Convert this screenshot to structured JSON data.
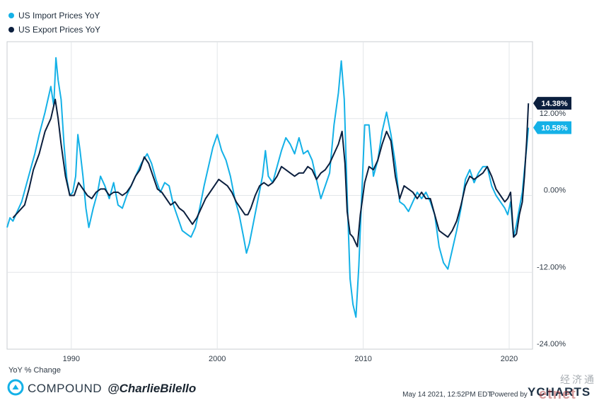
{
  "chart_data": {
    "type": "line",
    "title": "",
    "xlabel": "",
    "ylabel": "YoY % Change",
    "xlim": [
      1985.6,
      2021.6
    ],
    "ylim": [
      -24,
      24
    ],
    "x_ticks": [
      "1990",
      "2000",
      "2010",
      "2020"
    ],
    "y_ticks": [
      "12.00%",
      "0.00%",
      "-12.00%",
      "-24.00%"
    ],
    "legend_position": "top-left",
    "grid": true,
    "series": [
      {
        "name": "US Import Prices YoY",
        "color": "#14b1e7",
        "last_value_label": "10.58%",
        "points": [
          [
            1985.6,
            -5.0
          ],
          [
            1985.8,
            -3.5
          ],
          [
            1986.0,
            -4.0
          ],
          [
            1986.3,
            -2.5
          ],
          [
            1986.6,
            -1.0
          ],
          [
            1986.9,
            1.5
          ],
          [
            1987.2,
            4.0
          ],
          [
            1987.5,
            6.5
          ],
          [
            1987.8,
            9.5
          ],
          [
            1988.2,
            13.0
          ],
          [
            1988.6,
            17.0
          ],
          [
            1988.8,
            14.0
          ],
          [
            1988.95,
            21.5
          ],
          [
            1989.1,
            18.0
          ],
          [
            1989.3,
            15.0
          ],
          [
            1989.5,
            8.0
          ],
          [
            1989.7,
            2.5
          ],
          [
            1989.9,
            0.0
          ],
          [
            1990.1,
            0.5
          ],
          [
            1990.3,
            3.0
          ],
          [
            1990.45,
            9.5
          ],
          [
            1990.6,
            7.0
          ],
          [
            1990.8,
            3.0
          ],
          [
            1991.0,
            -2.0
          ],
          [
            1991.2,
            -5.0
          ],
          [
            1991.5,
            -2.0
          ],
          [
            1991.8,
            0.5
          ],
          [
            1992.0,
            3.0
          ],
          [
            1992.3,
            1.5
          ],
          [
            1992.6,
            -0.5
          ],
          [
            1992.9,
            2.0
          ],
          [
            1993.2,
            -1.5
          ],
          [
            1993.5,
            -2.0
          ],
          [
            1993.8,
            0.0
          ],
          [
            1994.1,
            1.5
          ],
          [
            1994.5,
            3.5
          ],
          [
            1994.8,
            5.0
          ],
          [
            1995.2,
            6.5
          ],
          [
            1995.5,
            5.0
          ],
          [
            1995.8,
            2.5
          ],
          [
            1996.1,
            0.5
          ],
          [
            1996.4,
            2.0
          ],
          [
            1996.7,
            1.5
          ],
          [
            1997.0,
            -1.5
          ],
          [
            1997.3,
            -3.5
          ],
          [
            1997.6,
            -5.5
          ],
          [
            1997.9,
            -6.0
          ],
          [
            1998.2,
            -6.5
          ],
          [
            1998.5,
            -5.0
          ],
          [
            1998.8,
            -2.0
          ],
          [
            1999.1,
            1.5
          ],
          [
            1999.4,
            4.5
          ],
          [
            1999.7,
            7.5
          ],
          [
            2000.0,
            9.5
          ],
          [
            2000.3,
            7.0
          ],
          [
            2000.6,
            5.5
          ],
          [
            2000.9,
            3.0
          ],
          [
            2001.2,
            -0.5
          ],
          [
            2001.5,
            -3.0
          ],
          [
            2001.8,
            -6.5
          ],
          [
            2002.0,
            -9.0
          ],
          [
            2002.2,
            -7.5
          ],
          [
            2002.5,
            -4.0
          ],
          [
            2002.8,
            -0.5
          ],
          [
            2003.1,
            3.0
          ],
          [
            2003.3,
            7.0
          ],
          [
            2003.5,
            3.0
          ],
          [
            2003.8,
            2.0
          ],
          [
            2004.1,
            4.5
          ],
          [
            2004.4,
            7.0
          ],
          [
            2004.7,
            9.0
          ],
          [
            2005.0,
            8.0
          ],
          [
            2005.3,
            6.5
          ],
          [
            2005.6,
            9.0
          ],
          [
            2005.9,
            6.5
          ],
          [
            2006.2,
            7.0
          ],
          [
            2006.5,
            5.5
          ],
          [
            2006.8,
            2.5
          ],
          [
            2007.1,
            -0.5
          ],
          [
            2007.4,
            1.5
          ],
          [
            2007.7,
            3.5
          ],
          [
            2008.0,
            11.0
          ],
          [
            2008.3,
            16.0
          ],
          [
            2008.5,
            21.0
          ],
          [
            2008.7,
            15.0
          ],
          [
            2008.9,
            0.0
          ],
          [
            2009.1,
            -13.0
          ],
          [
            2009.3,
            -17.0
          ],
          [
            2009.5,
            -19.0
          ],
          [
            2009.7,
            -11.0
          ],
          [
            2009.9,
            0.0
          ],
          [
            2010.1,
            11.0
          ],
          [
            2010.4,
            11.0
          ],
          [
            2010.7,
            3.0
          ],
          [
            2011.0,
            5.5
          ],
          [
            2011.3,
            10.0
          ],
          [
            2011.6,
            13.0
          ],
          [
            2011.9,
            9.5
          ],
          [
            2012.2,
            5.0
          ],
          [
            2012.5,
            -1.0
          ],
          [
            2012.8,
            -1.5
          ],
          [
            2013.1,
            -2.5
          ],
          [
            2013.4,
            -1.0
          ],
          [
            2013.7,
            0.5
          ],
          [
            2014.0,
            -0.5
          ],
          [
            2014.3,
            0.5
          ],
          [
            2014.6,
            -1.0
          ],
          [
            2014.9,
            -3.0
          ],
          [
            2015.2,
            -8.0
          ],
          [
            2015.5,
            -10.5
          ],
          [
            2015.8,
            -11.5
          ],
          [
            2016.1,
            -8.5
          ],
          [
            2016.4,
            -5.5
          ],
          [
            2016.7,
            -2.0
          ],
          [
            2017.0,
            2.5
          ],
          [
            2017.3,
            4.0
          ],
          [
            2017.6,
            2.0
          ],
          [
            2017.9,
            3.5
          ],
          [
            2018.2,
            4.5
          ],
          [
            2018.5,
            4.5
          ],
          [
            2018.8,
            1.5
          ],
          [
            2019.1,
            0.0
          ],
          [
            2019.4,
            -1.0
          ],
          [
            2019.7,
            -2.0
          ],
          [
            2019.9,
            -3.0
          ],
          [
            2020.1,
            -1.0
          ],
          [
            2020.3,
            -6.5
          ],
          [
            2020.5,
            -4.5
          ],
          [
            2020.7,
            -2.0
          ],
          [
            2020.9,
            0.5
          ],
          [
            2021.05,
            4.0
          ],
          [
            2021.2,
            7.5
          ],
          [
            2021.32,
            10.58
          ]
        ]
      },
      {
        "name": "US Export Prices YoY",
        "color": "#0b1f3e",
        "last_value_label": "14.38%",
        "points": [
          [
            1986.0,
            -3.5
          ],
          [
            1986.4,
            -2.5
          ],
          [
            1986.8,
            -1.5
          ],
          [
            1987.1,
            1.0
          ],
          [
            1987.4,
            4.0
          ],
          [
            1987.8,
            6.5
          ],
          [
            1988.2,
            10.0
          ],
          [
            1988.6,
            12.0
          ],
          [
            1988.9,
            15.0
          ],
          [
            1989.1,
            12.0
          ],
          [
            1989.3,
            8.0
          ],
          [
            1989.6,
            3.0
          ],
          [
            1989.9,
            0.0
          ],
          [
            1990.2,
            0.0
          ],
          [
            1990.5,
            2.0
          ],
          [
            1990.8,
            1.0
          ],
          [
            1991.1,
            0.0
          ],
          [
            1991.4,
            -0.5
          ],
          [
            1991.7,
            0.5
          ],
          [
            1992.0,
            1.0
          ],
          [
            1992.3,
            1.0
          ],
          [
            1992.6,
            0.0
          ],
          [
            1992.9,
            0.5
          ],
          [
            1993.2,
            0.5
          ],
          [
            1993.5,
            0.0
          ],
          [
            1993.8,
            0.5
          ],
          [
            1994.1,
            1.5
          ],
          [
            1994.4,
            3.0
          ],
          [
            1994.7,
            4.0
          ],
          [
            1995.0,
            6.0
          ],
          [
            1995.3,
            5.0
          ],
          [
            1995.6,
            3.0
          ],
          [
            1995.9,
            1.0
          ],
          [
            1996.2,
            0.5
          ],
          [
            1996.5,
            -0.5
          ],
          [
            1996.8,
            -1.5
          ],
          [
            1997.1,
            -1.0
          ],
          [
            1997.4,
            -2.0
          ],
          [
            1997.7,
            -2.5
          ],
          [
            1998.0,
            -3.5
          ],
          [
            1998.3,
            -4.5
          ],
          [
            1998.6,
            -3.5
          ],
          [
            1998.9,
            -2.0
          ],
          [
            1999.2,
            -0.5
          ],
          [
            1999.5,
            0.5
          ],
          [
            1999.8,
            1.5
          ],
          [
            2000.1,
            2.5
          ],
          [
            2000.4,
            2.0
          ],
          [
            2000.7,
            1.5
          ],
          [
            2001.0,
            0.5
          ],
          [
            2001.3,
            -1.0
          ],
          [
            2001.6,
            -2.0
          ],
          [
            2001.9,
            -3.0
          ],
          [
            2002.1,
            -3.0
          ],
          [
            2002.3,
            -2.0
          ],
          [
            2002.6,
            0.0
          ],
          [
            2002.9,
            1.5
          ],
          [
            2003.2,
            2.0
          ],
          [
            2003.5,
            1.5
          ],
          [
            2003.8,
            2.0
          ],
          [
            2004.1,
            3.0
          ],
          [
            2004.4,
            4.5
          ],
          [
            2004.7,
            4.0
          ],
          [
            2005.0,
            3.5
          ],
          [
            2005.3,
            3.0
          ],
          [
            2005.6,
            3.5
          ],
          [
            2005.9,
            3.5
          ],
          [
            2006.2,
            4.5
          ],
          [
            2006.5,
            4.0
          ],
          [
            2006.8,
            2.5
          ],
          [
            2007.1,
            3.5
          ],
          [
            2007.4,
            4.0
          ],
          [
            2007.7,
            5.0
          ],
          [
            2008.0,
            6.5
          ],
          [
            2008.3,
            8.0
          ],
          [
            2008.55,
            10.0
          ],
          [
            2008.75,
            5.0
          ],
          [
            2008.9,
            -2.5
          ],
          [
            2009.1,
            -6.0
          ],
          [
            2009.3,
            -6.5
          ],
          [
            2009.6,
            -8.0
          ],
          [
            2009.8,
            -3.0
          ],
          [
            2010.1,
            2.0
          ],
          [
            2010.4,
            4.5
          ],
          [
            2010.7,
            4.0
          ],
          [
            2011.0,
            5.5
          ],
          [
            2011.3,
            8.0
          ],
          [
            2011.6,
            10.0
          ],
          [
            2011.9,
            8.5
          ],
          [
            2012.2,
            3.0
          ],
          [
            2012.5,
            -0.5
          ],
          [
            2012.8,
            1.5
          ],
          [
            2013.1,
            1.0
          ],
          [
            2013.4,
            0.5
          ],
          [
            2013.7,
            -0.5
          ],
          [
            2014.0,
            0.5
          ],
          [
            2014.3,
            -0.5
          ],
          [
            2014.6,
            -0.5
          ],
          [
            2014.9,
            -3.0
          ],
          [
            2015.2,
            -5.5
          ],
          [
            2015.5,
            -6.0
          ],
          [
            2015.8,
            -6.5
          ],
          [
            2016.1,
            -5.5
          ],
          [
            2016.4,
            -4.0
          ],
          [
            2016.7,
            -1.5
          ],
          [
            2017.0,
            1.5
          ],
          [
            2017.3,
            3.0
          ],
          [
            2017.6,
            2.5
          ],
          [
            2017.9,
            3.0
          ],
          [
            2018.2,
            3.5
          ],
          [
            2018.5,
            4.5
          ],
          [
            2018.8,
            3.0
          ],
          [
            2019.1,
            1.0
          ],
          [
            2019.4,
            0.0
          ],
          [
            2019.7,
            -1.0
          ],
          [
            2019.9,
            -0.5
          ],
          [
            2020.1,
            0.5
          ],
          [
            2020.3,
            -6.5
          ],
          [
            2020.5,
            -6.0
          ],
          [
            2020.7,
            -3.0
          ],
          [
            2020.9,
            -1.0
          ],
          [
            2021.05,
            3.0
          ],
          [
            2021.2,
            8.5
          ],
          [
            2021.32,
            14.38
          ]
        ]
      }
    ]
  },
  "footer": {
    "brand": "COMPOUND",
    "handle": "@CharlieBilello",
    "timestamp": "May 14 2021, 12:52PM EDT.",
    "powered_by": "Powered by",
    "ycharts": "YCHARTS",
    "watermark": "经济通",
    "watermark_sub": "etnet"
  }
}
